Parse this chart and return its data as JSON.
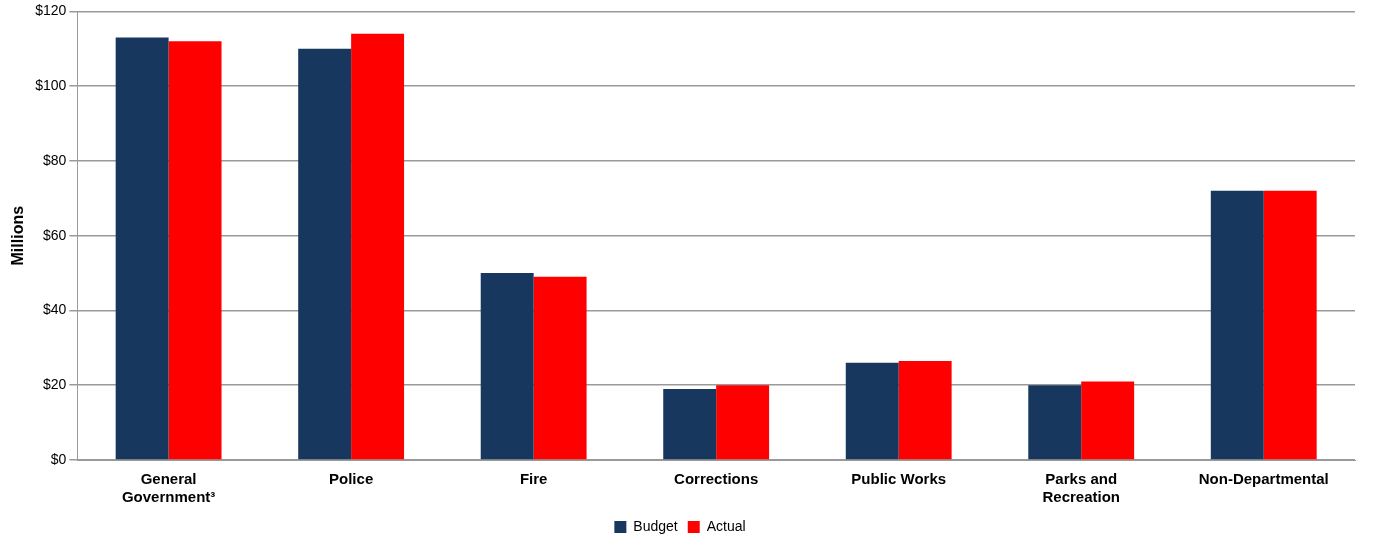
{
  "chart_data": {
    "type": "bar",
    "ylabel": "Millions",
    "categories": [
      "General Government³",
      "Police",
      "Fire",
      "Corrections",
      "Public Works",
      "Parks and Recreation",
      "Non-Departmental"
    ],
    "series": [
      {
        "name": "Budget",
        "color": "#17375e",
        "values": [
          113,
          110,
          50,
          19,
          26,
          20,
          72
        ]
      },
      {
        "name": "Actual",
        "color": "#ff0000",
        "values": [
          112,
          114,
          49,
          20,
          26.5,
          21,
          72
        ]
      }
    ],
    "ylim": [
      0,
      120
    ],
    "yticks": [
      {
        "value": 0,
        "label": "$0"
      },
      {
        "value": 20,
        "label": "$20"
      },
      {
        "value": 40,
        "label": "$40"
      },
      {
        "value": 60,
        "label": "$60"
      },
      {
        "value": 80,
        "label": "$80"
      },
      {
        "value": 100,
        "label": "$100"
      },
      {
        "value": 120,
        "label": "$120"
      }
    ],
    "grid": "y",
    "legend": "bottom"
  }
}
